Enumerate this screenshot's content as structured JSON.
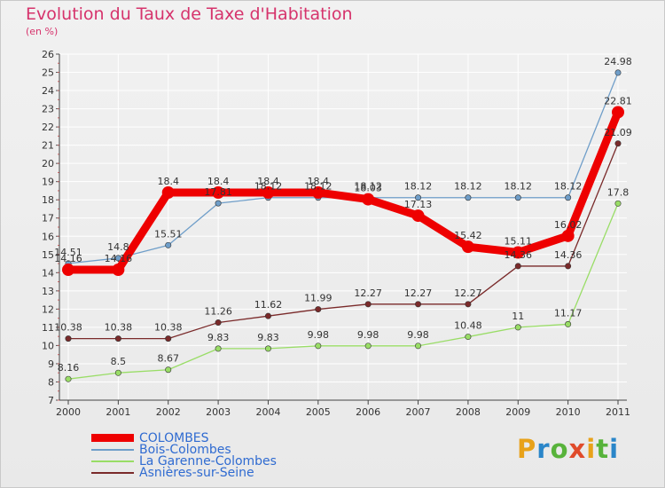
{
  "title": "Evolution du Taux de Taxe d'Habitation",
  "unit": "(en %)",
  "logo": {
    "letters": [
      "P",
      "r",
      "o",
      "x",
      "i",
      "t",
      "i"
    ]
  },
  "chart_data": {
    "type": "line",
    "title": "Evolution du Taux de Taxe d'Habitation",
    "ylabel": "(en %)",
    "xlabel": "",
    "ylim": [
      7,
      26
    ],
    "grid": true,
    "legend": "bottom-left",
    "x": [
      2000,
      2001,
      2002,
      2003,
      2004,
      2005,
      2006,
      2007,
      2008,
      2009,
      2010,
      2011
    ],
    "yticks": [
      7,
      8,
      9,
      10,
      11,
      12,
      13,
      14,
      15,
      16,
      17,
      18,
      19,
      20,
      21,
      22,
      23,
      24,
      25,
      26
    ],
    "series": [
      {
        "name": "COLOMBES",
        "color": "#ee0000",
        "width": 9,
        "values": [
          14.16,
          14.16,
          18.4,
          18.4,
          18.4,
          18.4,
          18.03,
          17.13,
          15.42,
          15.11,
          16.02,
          22.81
        ],
        "labels": [
          "14.16",
          "14.16",
          "18.4",
          "18.4",
          "18.4",
          "18.4",
          "18.03",
          "17.13",
          "15.42",
          "15.11",
          "16.02",
          "22.81"
        ]
      },
      {
        "name": "Bois-Colombes",
        "color": "#6f9ec9",
        "width": 1.3,
        "values": [
          14.51,
          14.8,
          15.51,
          17.81,
          18.12,
          18.12,
          18.12,
          18.12,
          18.12,
          18.12,
          18.12,
          24.98
        ],
        "labels": [
          "14.51",
          "14.8",
          "15.51",
          "17.81",
          "18.12",
          "18.12",
          "18.12",
          "18.12",
          "18.12",
          "18.12",
          "18.12",
          "24.98"
        ]
      },
      {
        "name": "La Garenne-Colombes",
        "color": "#99dd66",
        "width": 1.3,
        "values": [
          8.16,
          8.5,
          8.67,
          9.83,
          9.83,
          9.98,
          9.98,
          9.98,
          10.48,
          11,
          11.17,
          17.8
        ],
        "labels": [
          "8.16",
          "8.5",
          "8.67",
          "9.83",
          "9.83",
          "9.98",
          "9.98",
          "9.98",
          "10.48",
          "11",
          "11.17",
          "17.8"
        ]
      },
      {
        "name": "Asnières-sur-Seine",
        "color": "#7a2a2a",
        "width": 1.3,
        "values": [
          10.38,
          10.38,
          10.38,
          11.26,
          11.62,
          11.99,
          12.27,
          12.27,
          12.27,
          14.36,
          14.36,
          21.09
        ],
        "labels": [
          "10.38",
          "10.38",
          "10.38",
          "11.26",
          "11.62",
          "11.99",
          "12.27",
          "12.27",
          "12.27",
          "14.36",
          "14.36",
          "21.09"
        ]
      }
    ]
  }
}
